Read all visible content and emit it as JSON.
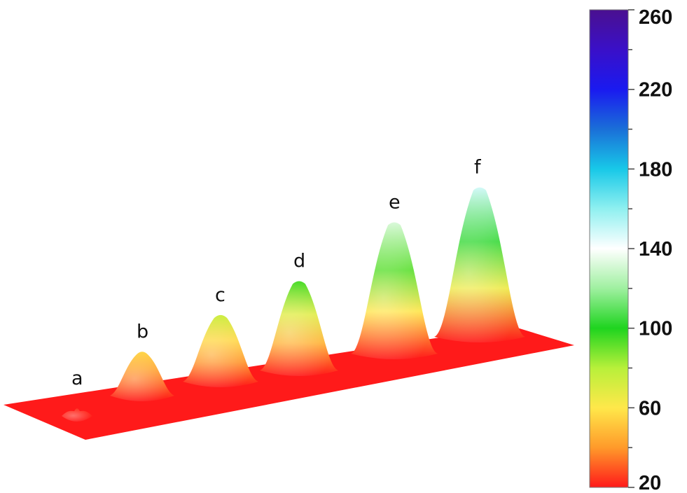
{
  "chart_data": {
    "type": "surface3d",
    "title": "",
    "peaks": [
      {
        "label": "a",
        "value": 23
      },
      {
        "label": "b",
        "value": 55
      },
      {
        "label": "c",
        "value": 75
      },
      {
        "label": "d",
        "value": 95
      },
      {
        "label": "e",
        "value": 132
      },
      {
        "label": "f",
        "value": 148
      }
    ],
    "colorbar": {
      "min": 20,
      "max": 260,
      "tick_labels": [
        "260",
        "220",
        "180",
        "140",
        "100",
        "60",
        "20"
      ],
      "tick_values": [
        260,
        220,
        180,
        140,
        100,
        60,
        20
      ],
      "minor_step": 20,
      "colors": [
        {
          "value": 20,
          "color": "#ff1a1a"
        },
        {
          "value": 40,
          "color": "#ff9a2a"
        },
        {
          "value": 60,
          "color": "#ffe84a"
        },
        {
          "value": 80,
          "color": "#b8f03a"
        },
        {
          "value": 100,
          "color": "#1fd41f"
        },
        {
          "value": 120,
          "color": "#9ff0a0"
        },
        {
          "value": 140,
          "color": "#ffffff"
        },
        {
          "value": 160,
          "color": "#8ff0f0"
        },
        {
          "value": 180,
          "color": "#18c8e8"
        },
        {
          "value": 200,
          "color": "#1a6fd8"
        },
        {
          "value": 220,
          "color": "#1a1af0"
        },
        {
          "value": 240,
          "color": "#3a10c8"
        },
        {
          "value": 260,
          "color": "#4a1090"
        }
      ]
    },
    "legend": "colorbar-right",
    "grid": false
  }
}
